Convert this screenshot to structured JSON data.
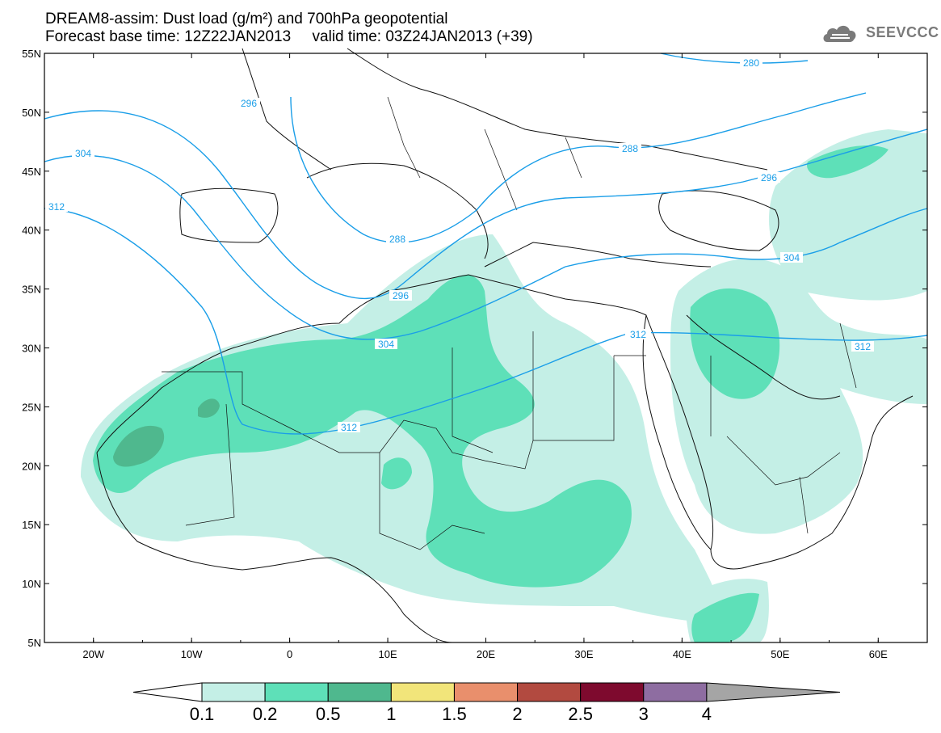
{
  "title": {
    "line1": "DREAM8-assim: Dust load (g/m²) and 700hPa geopotential",
    "line2": "Forecast base time: 12Z22JAN2013     valid time: 03Z24JAN2013 (+39)"
  },
  "logo": {
    "text": "SEEVCCC",
    "icon": "cloud-icon"
  },
  "map": {
    "lon_ticks": [
      "20W",
      "10W",
      "0",
      "10E",
      "20E",
      "30E",
      "40E",
      "50E",
      "60E"
    ],
    "lat_ticks": [
      "55N",
      "50N",
      "45N",
      "40N",
      "35N",
      "30N",
      "25N",
      "20N",
      "15N",
      "10N",
      "5N"
    ],
    "lon_range": [
      -25,
      65
    ],
    "lat_range": [
      5,
      55
    ],
    "contour_color": "#1a9ee8",
    "contour_labels": [
      "280",
      "288",
      "288",
      "296",
      "296",
      "296",
      "304",
      "304",
      "304",
      "312",
      "312",
      "312"
    ]
  },
  "colorbar": {
    "labels": [
      "0.1",
      "0.2",
      "0.5",
      "1",
      "1.5",
      "2",
      "2.5",
      "3",
      "4"
    ],
    "colors": [
      "#c4efe6",
      "#5ee0b8",
      "#4fb88e",
      "#f2e57a",
      "#e98f6c",
      "#b24a40",
      "#7e0a2e",
      "#8e6da1",
      "#a5a5a5"
    ]
  },
  "dust_colors": {
    "low": "#c4efe6",
    "mid": "#5ee0b8",
    "high": "#4fb88e"
  }
}
